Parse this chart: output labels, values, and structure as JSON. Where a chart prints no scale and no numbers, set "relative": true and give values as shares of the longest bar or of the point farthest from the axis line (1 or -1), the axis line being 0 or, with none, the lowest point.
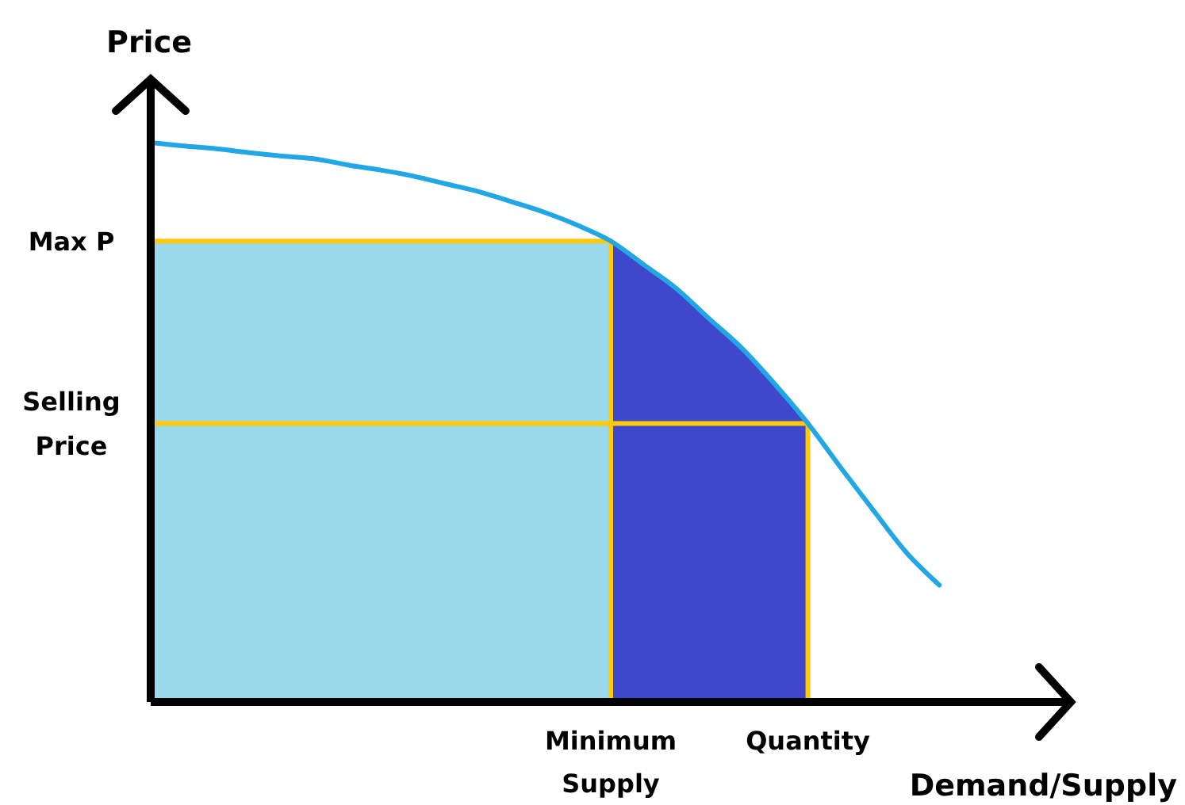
{
  "chart_data": {
    "type": "line",
    "relative": true,
    "xlabel": "Demand/Supply",
    "ylabel": "Price",
    "categories": [
      null,
      null,
      null,
      null,
      null,
      null,
      null,
      null,
      null,
      null,
      null,
      null,
      null,
      null,
      "Minimum Supply",
      null,
      null,
      null,
      null,
      null,
      "Quantity",
      null,
      null,
      null,
      null,
      null,
      null,
      null,
      null
    ],
    "annotations": [
      "Max P",
      "Selling Price"
    ],
    "grid": false,
    "legend": false,
    "marker": "none",
    "line_style": "solid",
    "series": [
      {
        "type": "area",
        "color": "#99d9ea",
        "values": [
          0.824,
          0.824,
          0.824,
          0.824,
          0.824,
          0.824,
          0.824,
          0.824,
          0.824,
          0.824,
          0.824,
          0.824,
          0.824,
          0.824,
          0.824,
          null,
          null,
          null,
          null,
          null,
          null,
          null,
          null,
          null,
          null,
          null,
          null,
          null,
          null
        ]
      },
      {
        "type": "area",
        "color": "#3f48cc",
        "values": [
          null,
          null,
          null,
          null,
          null,
          null,
          null,
          null,
          null,
          null,
          null,
          null,
          null,
          null,
          0.824,
          0.782,
          0.739,
          0.685,
          0.632,
          0.568,
          0.498,
          null,
          null,
          null,
          null,
          null,
          null,
          null,
          null
        ]
      },
      {
        "color": "#ffc90e",
        "values": [
          0.824,
          0.824,
          0.824,
          0.824,
          0.824,
          0.824,
          0.824,
          0.824,
          0.824,
          0.824,
          0.824,
          0.824,
          0.824,
          0.824,
          0.824,
          null,
          null,
          null,
          null,
          null,
          null,
          null,
          null,
          null,
          null,
          null,
          null,
          null,
          null
        ]
      },
      {
        "color": "#ffc90e",
        "values": [
          0.498,
          0.498,
          0.498,
          0.498,
          0.498,
          0.498,
          0.498,
          0.498,
          0.498,
          0.498,
          0.498,
          0.498,
          0.498,
          0.498,
          0.498,
          0.498,
          0.498,
          0.498,
          0.498,
          0.498,
          0.498,
          null,
          null,
          null,
          null,
          null,
          null,
          null,
          null
        ]
      },
      {
        "color": "#ffc90e",
        "x": [
          "Minimum Supply",
          "Minimum Supply"
        ],
        "values": [
          0,
          0.824
        ]
      },
      {
        "color": "#ffc90e",
        "x": [
          "Quantity",
          "Quantity"
        ],
        "values": [
          0,
          0.498
        ]
      },
      {
        "color": "#22a7e6",
        "values": [
          1,
          0.994,
          0.989,
          0.982,
          0.976,
          0.971,
          0.96,
          0.951,
          0.94,
          0.926,
          0.912,
          0.894,
          0.875,
          0.852,
          0.824,
          0.782,
          0.739,
          0.685,
          0.632,
          0.568,
          0.498,
          0.419,
          0.342,
          0.267,
          0.209,
          null,
          null,
          null,
          null
        ]
      }
    ]
  }
}
